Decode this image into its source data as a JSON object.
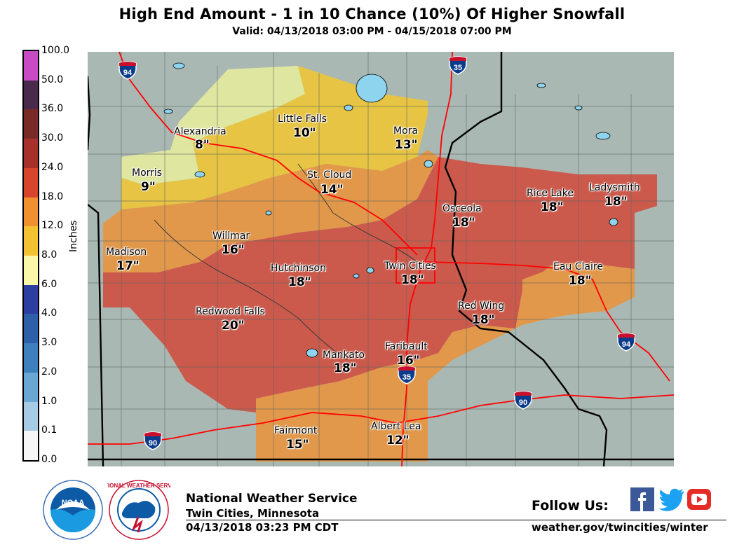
{
  "header": {
    "title": "High End Amount - 1 in 10 Chance (10%) Of Higher Snowfall",
    "valid": "Valid: 04/13/2018 03:00 PM - 04/15/2018 07:00 PM"
  },
  "legend": {
    "unit": "Inches",
    "labels": [
      "100.0",
      "50.0",
      "36.0",
      "30.0",
      "24.0",
      "18.0",
      "12.0",
      "8.0",
      "6.0",
      "4.0",
      "3.0",
      "2.0",
      "1.0",
      "0.1",
      "0.0"
    ],
    "colors": [
      "#c84bc4",
      "#4a2a4c",
      "#7a2a26",
      "#a8302a",
      "#d8452c",
      "#f0902e",
      "#f2c232",
      "#fbf7a8",
      "#2c3fa0",
      "#2d60a8",
      "#3e7fbd",
      "#6aa7d4",
      "#a6cbe5",
      "#dbe9f3",
      "#f6f6f6"
    ]
  },
  "map": {
    "zone_colors": {
      "background": "#aab8b4",
      "light_yellow": "#dfe6a0",
      "yellow": "#e7c443",
      "orange": "#e2984a",
      "red": "#cc5a4c",
      "water": "#8fd4ef",
      "interstate_line": "#ff0000"
    },
    "locations": [
      {
        "name": "Alexandria",
        "amount": "8\""
      },
      {
        "name": "Little Falls",
        "amount": "10\""
      },
      {
        "name": "Mora",
        "amount": "13\""
      },
      {
        "name": "Morris",
        "amount": "9\""
      },
      {
        "name": "St. Cloud",
        "amount": "14\""
      },
      {
        "name": "Osceola",
        "amount": "18\""
      },
      {
        "name": "Rice Lake",
        "amount": "18\""
      },
      {
        "name": "Ladysmith",
        "amount": "18\""
      },
      {
        "name": "Madison",
        "amount": "17\""
      },
      {
        "name": "Willmar",
        "amount": "16\""
      },
      {
        "name": "Hutchinson",
        "amount": "18\""
      },
      {
        "name": "Twin Cities",
        "amount": "18\""
      },
      {
        "name": "Eau Claire",
        "amount": "18\""
      },
      {
        "name": "Red Wing",
        "amount": "18\""
      },
      {
        "name": "Redwood Falls",
        "amount": "20\""
      },
      {
        "name": "Faribault",
        "amount": "16\""
      },
      {
        "name": "Mankato",
        "amount": "18\""
      },
      {
        "name": "Fairmont",
        "amount": "15\""
      },
      {
        "name": "Albert Lea",
        "amount": "12\""
      }
    ],
    "interstate_shields": [
      "94",
      "35",
      "94",
      "35",
      "90",
      "90"
    ]
  },
  "footer": {
    "org": "National Weather Service",
    "office": "Twin Cities, Minnesota",
    "issued": "04/13/2018 03:23 PM CDT",
    "follow": "Follow Us:",
    "url": "weather.gov/twincities/winter",
    "noaa_logo_text": "NOAA",
    "nws_logo_text": "NATIONAL WEATHER SERVICE"
  }
}
